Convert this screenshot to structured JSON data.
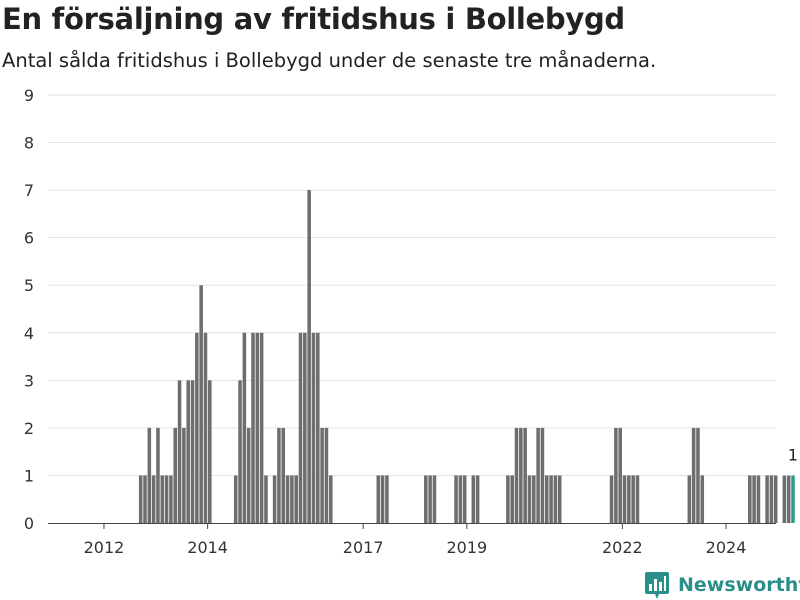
{
  "chart_data": {
    "type": "bar",
    "title": "En försäljning av fritidshus i Bollebygd",
    "subtitle": "Antal sålda fritidshus i Bollebygd under de senaste tre månaderna.",
    "xlabel": "",
    "ylabel": "",
    "ylim": [
      0,
      9
    ],
    "yticks": [
      0,
      1,
      2,
      3,
      4,
      5,
      6,
      7,
      8,
      9
    ],
    "xticks": [
      {
        "label": "2012",
        "month": "2012-01"
      },
      {
        "label": "2014",
        "month": "2014-01"
      },
      {
        "label": "2017",
        "month": "2017-01"
      },
      {
        "label": "2019",
        "month": "2019-01"
      },
      {
        "label": "2022",
        "month": "2022-01"
      },
      {
        "label": "2024",
        "month": "2024-01"
      }
    ],
    "grid": true,
    "start_month": "2011-10",
    "values": [
      0,
      0,
      0,
      0,
      0,
      0,
      0,
      0,
      0,
      0,
      0,
      1,
      1,
      2,
      1,
      2,
      1,
      1,
      1,
      2,
      3,
      2,
      3,
      3,
      4,
      5,
      4,
      3,
      0,
      0,
      0,
      0,
      0,
      1,
      3,
      4,
      2,
      4,
      4,
      4,
      1,
      0,
      1,
      2,
      2,
      1,
      1,
      1,
      4,
      4,
      7,
      4,
      4,
      2,
      2,
      1,
      0,
      0,
      0,
      0,
      0,
      0,
      0,
      0,
      0,
      0,
      1,
      1,
      1,
      0,
      0,
      0,
      0,
      0,
      0,
      0,
      0,
      1,
      1,
      1,
      0,
      0,
      0,
      0,
      1,
      1,
      1,
      0,
      1,
      1,
      0,
      0,
      0,
      0,
      0,
      0,
      1,
      1,
      2,
      2,
      2,
      1,
      1,
      2,
      2,
      1,
      1,
      1,
      1,
      0,
      0,
      0,
      0,
      0,
      0,
      0,
      0,
      0,
      0,
      0,
      1,
      2,
      2,
      1,
      1,
      1,
      1,
      0,
      0,
      0,
      0,
      0,
      0,
      0,
      0,
      0,
      0,
      0,
      1,
      2,
      2,
      1,
      0,
      0,
      0,
      0,
      0,
      0,
      0,
      0,
      0,
      0,
      1,
      1,
      1,
      0,
      1,
      1,
      1,
      0,
      1,
      1,
      1
    ],
    "highlight_color": "#2a9d8f",
    "bar_color": "#6e6e70",
    "highlight_label": "1"
  },
  "brand": {
    "name": "Newsworthy",
    "color": "#2a8f8a",
    "icon": "bar-chart-logo-icon"
  }
}
